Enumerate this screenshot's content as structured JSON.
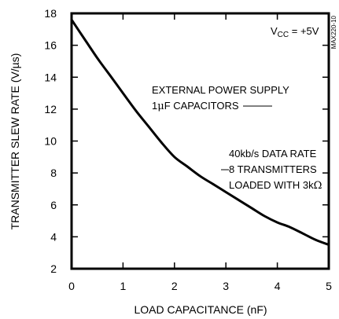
{
  "chart_data": {
    "type": "line",
    "xlabel": "LOAD CAPACITANCE (nF)",
    "ylabel": "TRANSMITTER SLEW RATE (V/µs)",
    "xlim": [
      0,
      5
    ],
    "ylim": [
      2,
      18
    ],
    "xticks": [
      "0",
      "1",
      "2",
      "3",
      "4",
      "5"
    ],
    "yticks": [
      "2",
      "4",
      "6",
      "8",
      "10",
      "12",
      "14",
      "16",
      "18"
    ],
    "grid": false,
    "legend": "none",
    "series": [
      {
        "x": [
          0,
          0.25,
          0.5,
          0.75,
          1.0,
          1.25,
          1.5,
          1.75,
          2.0,
          2.25,
          2.5,
          2.75,
          3.0,
          3.25,
          3.5,
          3.75,
          4.0,
          4.25,
          4.5,
          4.75,
          5.0
        ],
        "y": [
          17.6,
          16.4,
          15.2,
          14.1,
          13.0,
          11.9,
          10.9,
          9.9,
          9.0,
          8.4,
          7.8,
          7.3,
          6.8,
          6.3,
          5.8,
          5.3,
          4.9,
          4.6,
          4.2,
          3.8,
          3.5
        ]
      }
    ],
    "annotations": {
      "vcc_main": "V",
      "vcc_sub": "CC",
      "vcc_value": " = +5V",
      "supply_line1": "EXTERNAL POWER SUPPLY",
      "supply_line2_pre": "1",
      "supply_line2_mu": "μ",
      "supply_line2_post": "F CAPACITORS",
      "rate_line1": "40kb/s DATA RATE",
      "rate_line2": "8 TRANSMITTERS",
      "rate_line3_pre": "LOADED WITH 3k",
      "rate_line3_omega": "Ω",
      "figure_id": "MAX220-10"
    },
    "colors": {
      "line": "#000000",
      "axes": "#000000",
      "background": "#ffffff"
    }
  }
}
